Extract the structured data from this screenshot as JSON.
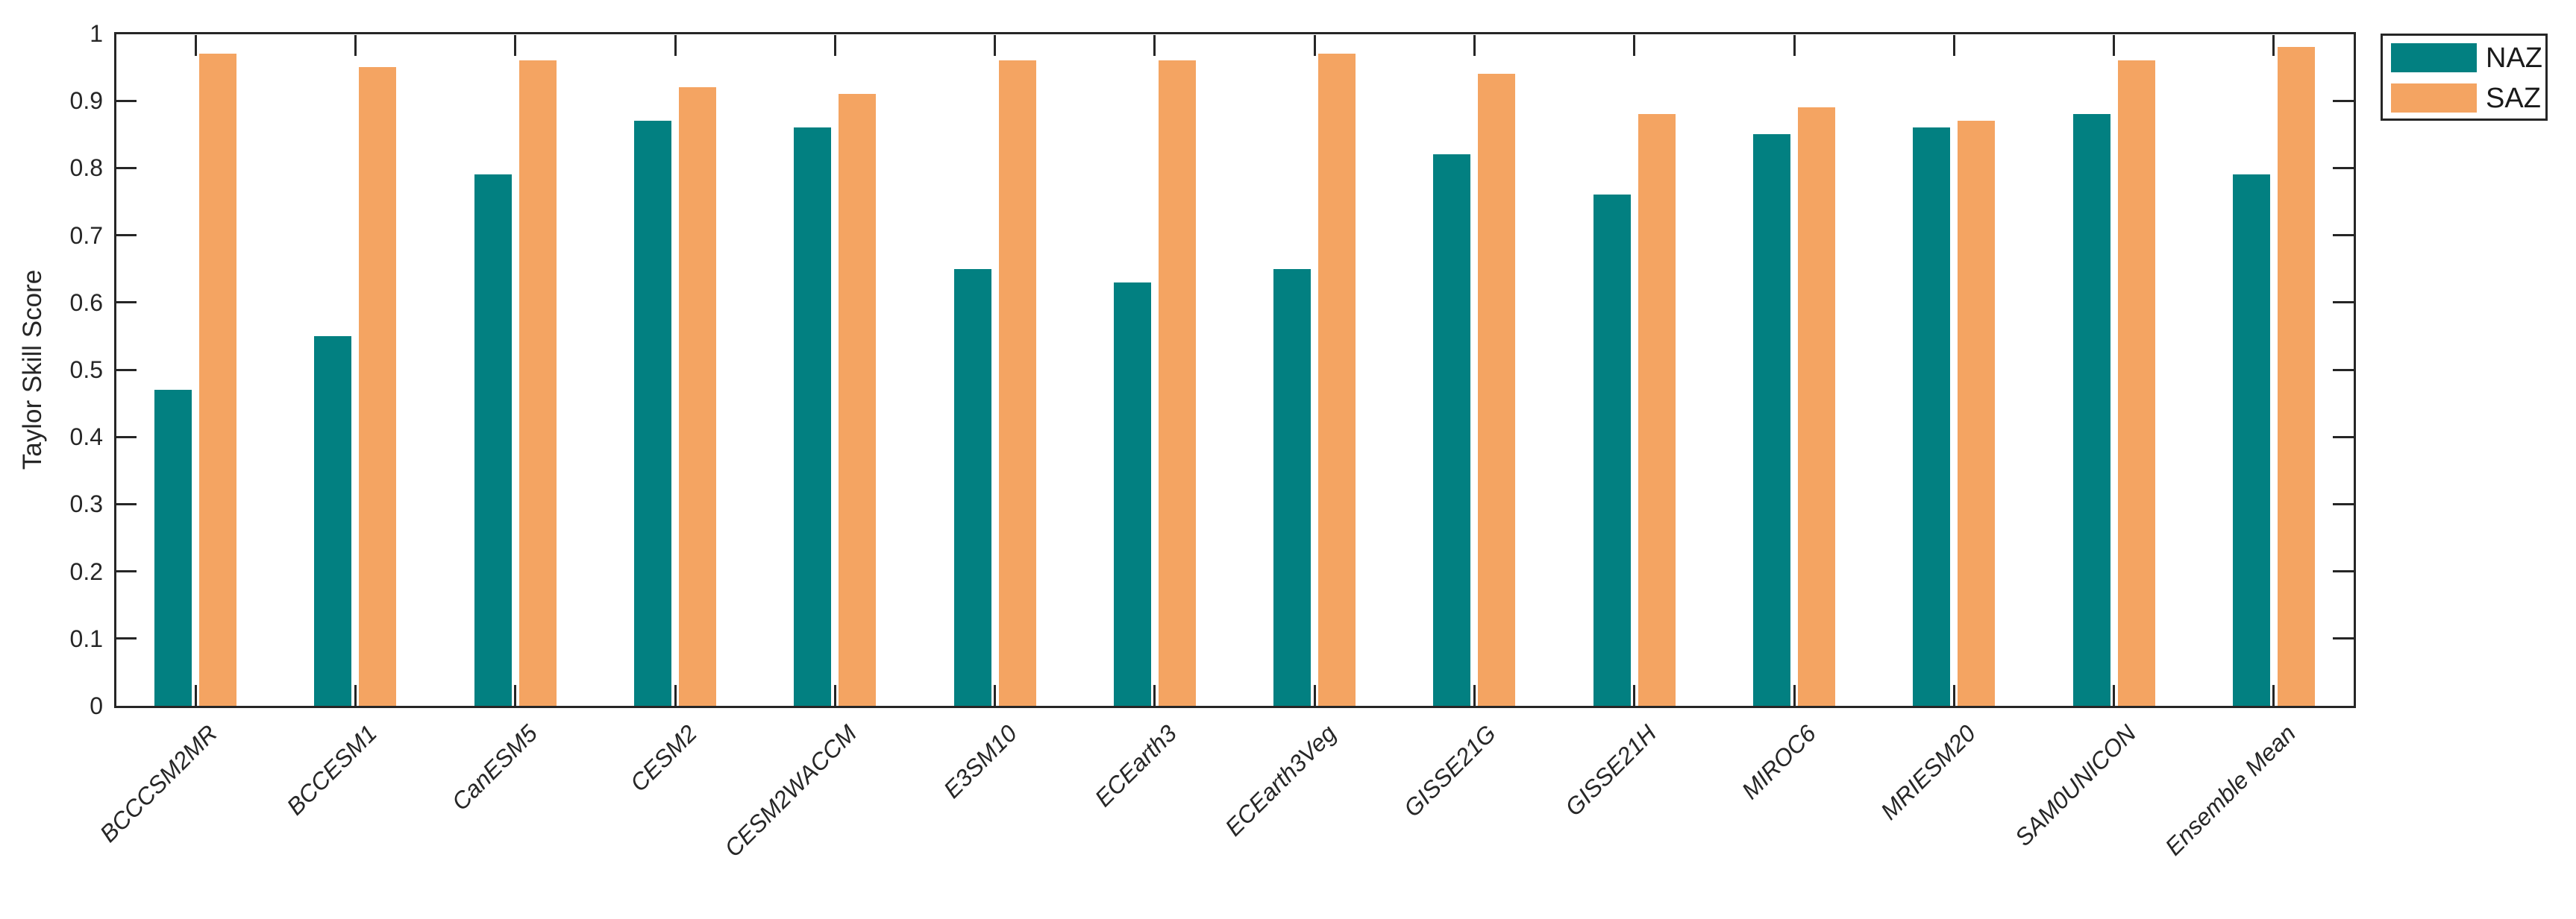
{
  "chart_data": {
    "type": "bar",
    "title": "",
    "xlabel": "",
    "ylabel": "Taylor Skill Score",
    "ylim": [
      0,
      1
    ],
    "ytick_step": 0.1,
    "ytick_labels": [
      "0",
      "0.1",
      "0.2",
      "0.3",
      "0.4",
      "0.5",
      "0.6",
      "0.7",
      "0.8",
      "0.9",
      "1"
    ],
    "grid": false,
    "legend_position": "outside-top-right",
    "bar_orientation": "vertical-grouped",
    "categories": [
      "BCCCSM2MR",
      "BCCESM1",
      "CanESM5",
      "CESM2",
      "CESM2WACCM",
      "E3SM10",
      "ECEarth3",
      "ECEarth3Veg",
      "GISSE21G",
      "GISSE21H",
      "MIROC6",
      "MRIESM20",
      "SAM0UNICON",
      "Ensemble Mean"
    ],
    "series": [
      {
        "name": "NAZ",
        "color": "#028081",
        "values": [
          0.47,
          0.55,
          0.79,
          0.87,
          0.86,
          0.65,
          0.63,
          0.65,
          0.82,
          0.76,
          0.85,
          0.86,
          0.88,
          0.79
        ]
      },
      {
        "name": "SAZ",
        "color": "#F4A462",
        "values": [
          0.97,
          0.95,
          0.96,
          0.92,
          0.91,
          0.96,
          0.96,
          0.97,
          0.94,
          0.88,
          0.89,
          0.87,
          0.96,
          0.98
        ]
      }
    ]
  },
  "colors": {
    "axis": "#262626",
    "text": "#262626",
    "background": "#ffffff"
  }
}
